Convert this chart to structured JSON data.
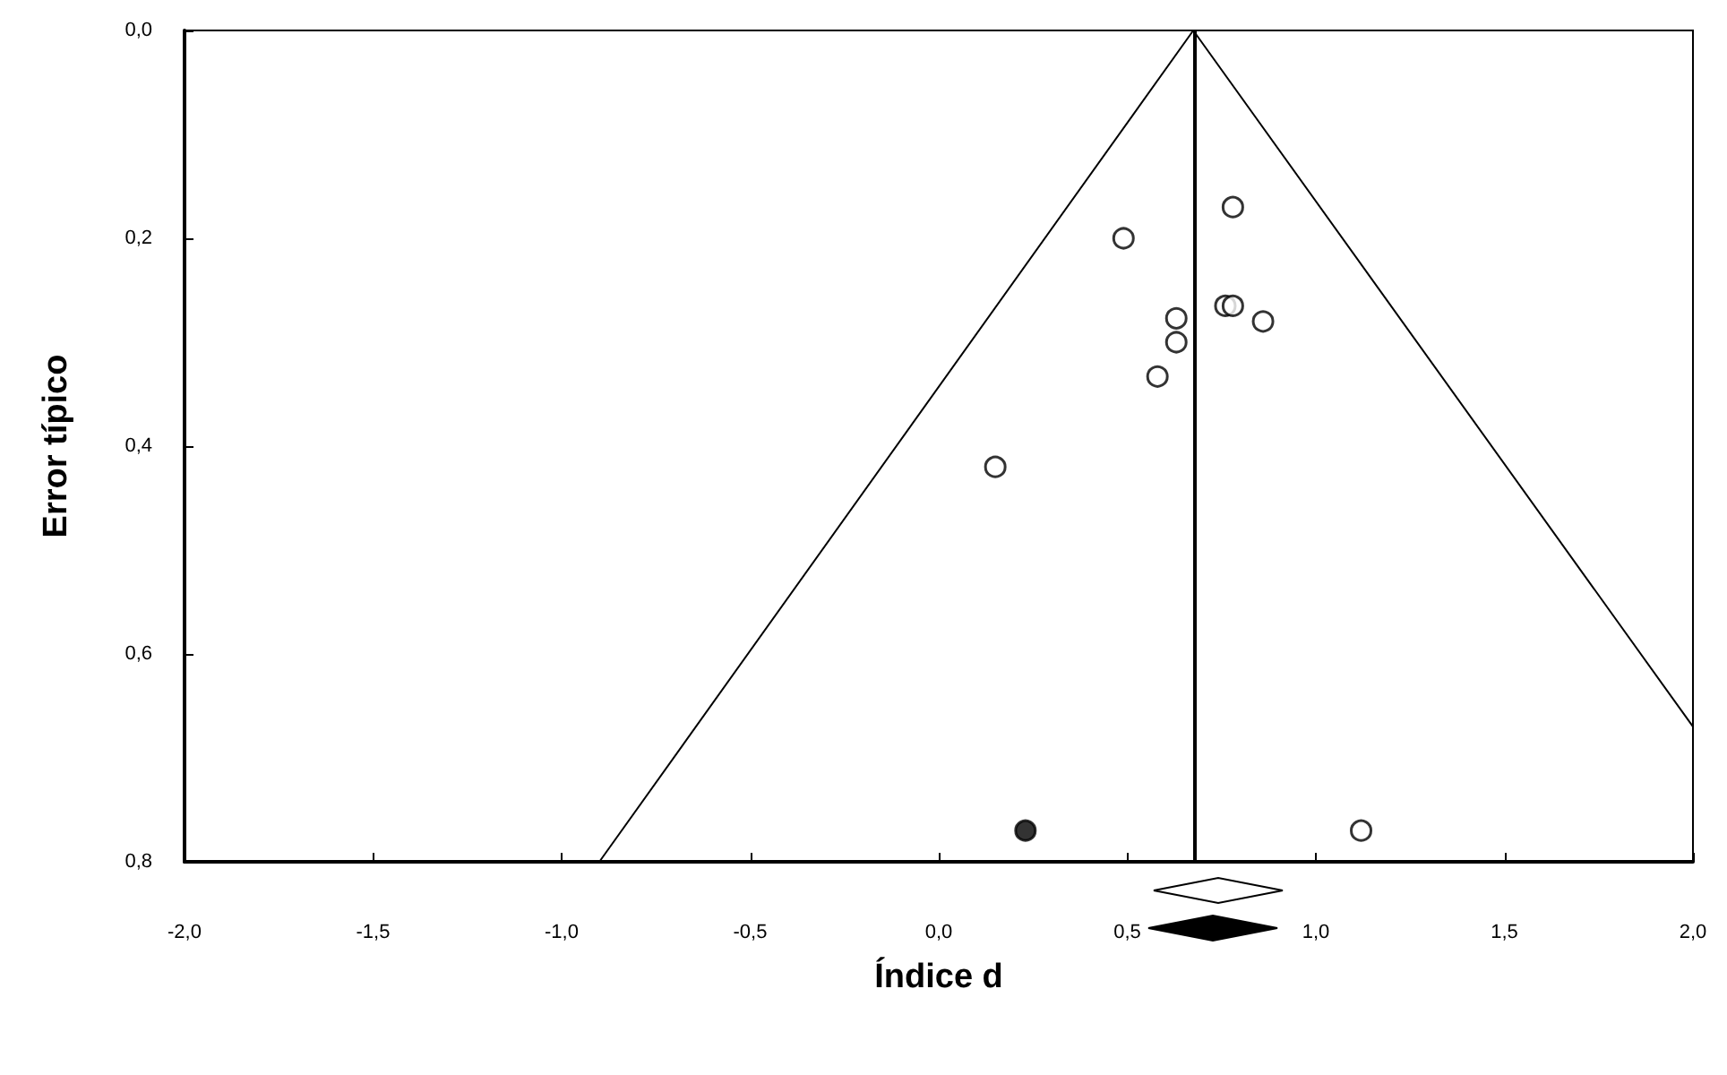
{
  "chart_data": {
    "type": "scatter",
    "xlabel": "Índice d",
    "ylabel": "Error típico",
    "xlim": [
      -2.0,
      2.0
    ],
    "ylim": [
      0.8,
      0.0
    ],
    "xticks": [
      {
        "value": -2.0,
        "label": "-2,0"
      },
      {
        "value": -1.5,
        "label": "-1,5"
      },
      {
        "value": -1.0,
        "label": "-1,0"
      },
      {
        "value": -0.5,
        "label": "-0,5"
      },
      {
        "value": 0.0,
        "label": "0,0"
      },
      {
        "value": 0.5,
        "label": "0,5"
      },
      {
        "value": 1.0,
        "label": "1,0"
      },
      {
        "value": 1.5,
        "label": "1,5"
      },
      {
        "value": 2.0,
        "label": "2,0"
      }
    ],
    "yticks": [
      {
        "value": 0.0,
        "label": "0,0"
      },
      {
        "value": 0.2,
        "label": "0,2"
      },
      {
        "value": 0.4,
        "label": "0,4"
      },
      {
        "value": 0.6,
        "label": "0,6"
      },
      {
        "value": 0.8,
        "label": "0,8"
      }
    ],
    "grid": false,
    "marker": "circle",
    "ref_lines": [
      {
        "axis": "x",
        "value": 0.675,
        "color": "#000000"
      }
    ],
    "series": [
      {
        "type": "line",
        "color": "#000000",
        "marker": "none",
        "x": [
          -0.9,
          0.675,
          2.0
        ],
        "values": [
          0.8,
          0.0,
          0.67
        ]
      },
      {
        "color": "#ffffff",
        "x": [
          0.49,
          0.78,
          0.76,
          0.78,
          0.86,
          0.63,
          0.63,
          0.58,
          0.15,
          1.12
        ],
        "values": [
          0.2,
          0.17,
          0.265,
          0.265,
          0.28,
          0.277,
          0.3,
          0.333,
          0.42,
          0.77
        ]
      },
      {
        "color": "#000000",
        "x": [
          0.23
        ],
        "values": [
          0.77
        ]
      }
    ]
  }
}
